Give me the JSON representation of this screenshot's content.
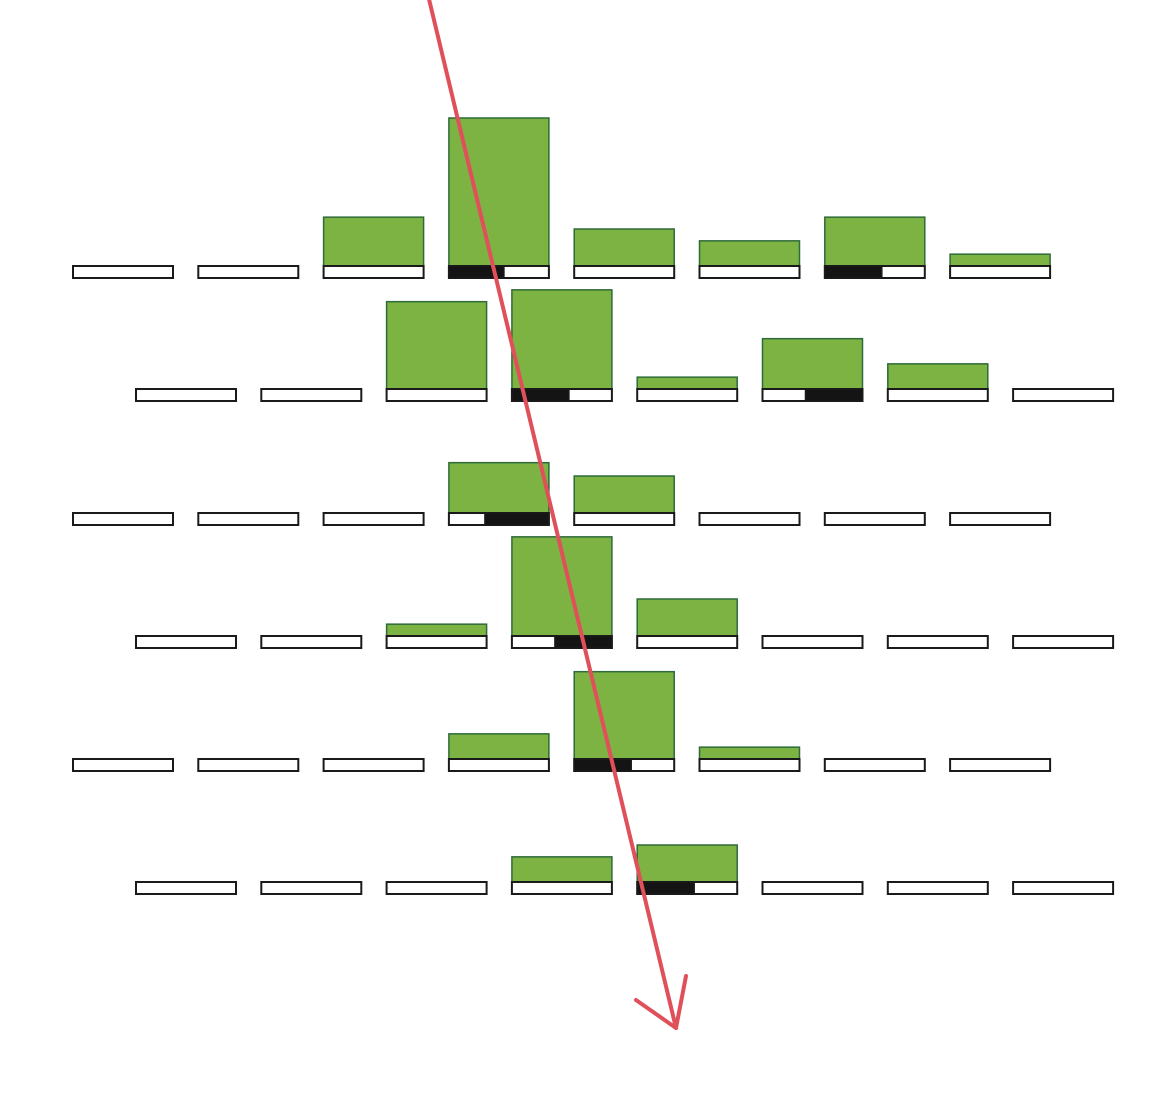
{
  "colors": {
    "green_fill": "#7cb342",
    "green_stroke": "#2e6b3a",
    "cell_fill": "#ffffff",
    "cell_stroke": "#1a1a1a",
    "dark_fill": "#141414",
    "arrow": "#e0505a",
    "background": "#ffffff"
  },
  "rows": [
    {
      "offset": "left",
      "cells": [
        {
          "bar": 0,
          "dark": 0,
          "dark_align": "left"
        },
        {
          "bar": 0,
          "dark": 0,
          "dark_align": "left"
        },
        {
          "bar": 0.33,
          "dark": 0,
          "dark_align": "left"
        },
        {
          "bar": 1.0,
          "dark": 0.55,
          "dark_align": "left"
        },
        {
          "bar": 0.25,
          "dark": 0,
          "dark_align": "left"
        },
        {
          "bar": 0.17,
          "dark": 0,
          "dark_align": "left"
        },
        {
          "bar": 0.33,
          "dark": 0.57,
          "dark_align": "left"
        },
        {
          "bar": 0.08,
          "dark": 0,
          "dark_align": "left"
        }
      ]
    },
    {
      "offset": "right",
      "cells": [
        {
          "bar": 0,
          "dark": 0,
          "dark_align": "left"
        },
        {
          "bar": 0,
          "dark": 0,
          "dark_align": "left"
        },
        {
          "bar": 0.59,
          "dark": 0,
          "dark_align": "left"
        },
        {
          "bar": 0.67,
          "dark": 0.57,
          "dark_align": "left"
        },
        {
          "bar": 0.08,
          "dark": 0,
          "dark_align": "left"
        },
        {
          "bar": 0.34,
          "dark": 0.57,
          "dark_align": "right"
        },
        {
          "bar": 0.17,
          "dark": 0,
          "dark_align": "left"
        },
        {
          "bar": 0,
          "dark": 0,
          "dark_align": "left"
        }
      ]
    },
    {
      "offset": "left",
      "cells": [
        {
          "bar": 0,
          "dark": 0,
          "dark_align": "left"
        },
        {
          "bar": 0,
          "dark": 0,
          "dark_align": "left"
        },
        {
          "bar": 0,
          "dark": 0,
          "dark_align": "left"
        },
        {
          "bar": 0.34,
          "dark": 0.64,
          "dark_align": "right"
        },
        {
          "bar": 0.25,
          "dark": 0,
          "dark_align": "left"
        },
        {
          "bar": 0,
          "dark": 0,
          "dark_align": "left"
        },
        {
          "bar": 0,
          "dark": 0,
          "dark_align": "left"
        },
        {
          "bar": 0,
          "dark": 0,
          "dark_align": "left"
        }
      ]
    },
    {
      "offset": "right",
      "cells": [
        {
          "bar": 0,
          "dark": 0,
          "dark_align": "left"
        },
        {
          "bar": 0,
          "dark": 0,
          "dark_align": "left"
        },
        {
          "bar": 0.08,
          "dark": 0,
          "dark_align": "left"
        },
        {
          "bar": 0.67,
          "dark": 0.57,
          "dark_align": "right"
        },
        {
          "bar": 0.25,
          "dark": 0,
          "dark_align": "left"
        },
        {
          "bar": 0,
          "dark": 0,
          "dark_align": "left"
        },
        {
          "bar": 0,
          "dark": 0,
          "dark_align": "left"
        },
        {
          "bar": 0,
          "dark": 0,
          "dark_align": "left"
        }
      ]
    },
    {
      "offset": "left",
      "cells": [
        {
          "bar": 0,
          "dark": 0,
          "dark_align": "left"
        },
        {
          "bar": 0,
          "dark": 0,
          "dark_align": "left"
        },
        {
          "bar": 0,
          "dark": 0,
          "dark_align": "left"
        },
        {
          "bar": 0.17,
          "dark": 0,
          "dark_align": "left"
        },
        {
          "bar": 0.59,
          "dark": 0.57,
          "dark_align": "left"
        },
        {
          "bar": 0.08,
          "dark": 0,
          "dark_align": "left"
        },
        {
          "bar": 0,
          "dark": 0,
          "dark_align": "left"
        },
        {
          "bar": 0,
          "dark": 0,
          "dark_align": "left"
        }
      ]
    },
    {
      "offset": "right",
      "cells": [
        {
          "bar": 0,
          "dark": 0,
          "dark_align": "left"
        },
        {
          "bar": 0,
          "dark": 0,
          "dark_align": "left"
        },
        {
          "bar": 0,
          "dark": 0,
          "dark_align": "left"
        },
        {
          "bar": 0.17,
          "dark": 0,
          "dark_align": "left"
        },
        {
          "bar": 0.25,
          "dark": 0.57,
          "dark_align": "left"
        },
        {
          "bar": 0,
          "dark": 0,
          "dark_align": "left"
        },
        {
          "bar": 0,
          "dark": 0,
          "dark_align": "left"
        },
        {
          "bar": 0,
          "dark": 0,
          "dark_align": "left"
        }
      ]
    }
  ],
  "arrow": {
    "shape": "diagonal-downward",
    "head": "open-v"
  }
}
